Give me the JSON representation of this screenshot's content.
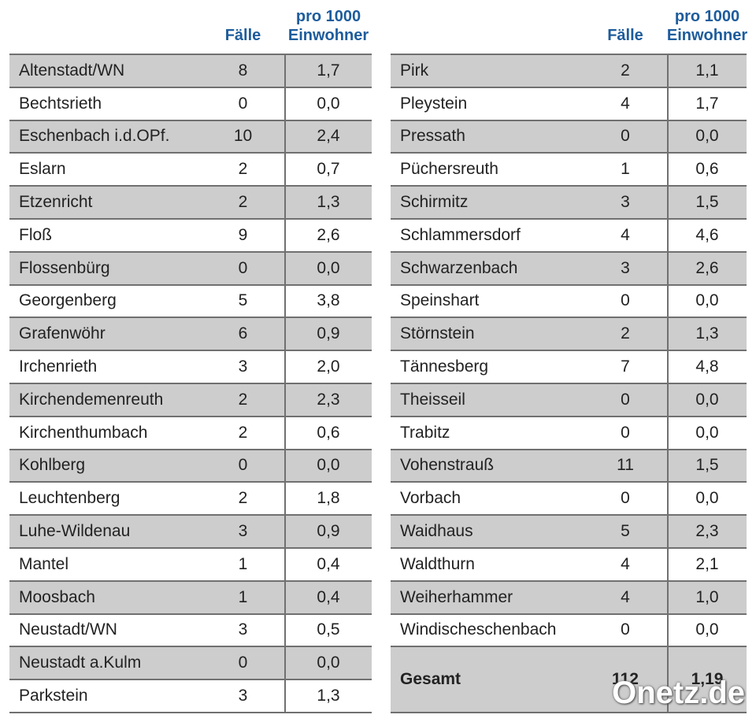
{
  "left": {
    "header": {
      "cases": "Fälle",
      "rate": [
        "pro 1000",
        "Einwohner"
      ]
    },
    "rows": [
      [
        "Altenstadt/WN",
        "8",
        "1,7"
      ],
      [
        "Bechtsrieth",
        "0",
        "0,0"
      ],
      [
        "Eschenbach i.d.OPf.",
        "10",
        "2,4"
      ],
      [
        "Eslarn",
        "2",
        "0,7"
      ],
      [
        "Etzenricht",
        "2",
        "1,3"
      ],
      [
        "Floß",
        "9",
        "2,6"
      ],
      [
        "Flossenbürg",
        "0",
        "0,0"
      ],
      [
        "Georgenberg",
        "5",
        "3,8"
      ],
      [
        "Grafenwöhr",
        "6",
        "0,9"
      ],
      [
        "Irchenrieth",
        "3",
        "2,0"
      ],
      [
        "Kirchendemenreuth",
        "2",
        "2,3"
      ],
      [
        "Kirchenthumbach",
        "2",
        "0,6"
      ],
      [
        "Kohlberg",
        "0",
        "0,0"
      ],
      [
        "Leuchtenberg",
        "2",
        "1,8"
      ],
      [
        "Luhe-Wildenau",
        "3",
        "0,9"
      ],
      [
        "Mantel",
        "1",
        "0,4"
      ],
      [
        "Moosbach",
        "1",
        "0,4"
      ],
      [
        "Neustadt/WN",
        "3",
        "0,5"
      ],
      [
        "Neustadt a.Kulm",
        "0",
        "0,0"
      ],
      [
        "Parkstein",
        "3",
        "1,3"
      ]
    ]
  },
  "right": {
    "header": {
      "cases": "Fälle",
      "rate": [
        "pro 1000",
        "Einwohner"
      ]
    },
    "rows": [
      [
        "Pirk",
        "2",
        "1,1"
      ],
      [
        "Pleystein",
        "4",
        "1,7"
      ],
      [
        "Pressath",
        "0",
        "0,0"
      ],
      [
        "Püchersreuth",
        "1",
        "0,6"
      ],
      [
        "Schirmitz",
        "3",
        "1,5"
      ],
      [
        "Schlammersdorf",
        "4",
        "4,6"
      ],
      [
        "Schwarzenbach",
        "3",
        "2,6"
      ],
      [
        "Speinshart",
        "0",
        "0,0"
      ],
      [
        "Störnstein",
        "2",
        "1,3"
      ],
      [
        "Tännesberg",
        "7",
        "4,8"
      ],
      [
        "Theisseil",
        "0",
        "0,0"
      ],
      [
        "Trabitz",
        "0",
        "0,0"
      ],
      [
        "Vohenstrauß",
        "11",
        "1,5"
      ],
      [
        "Vorbach",
        "0",
        "0,0"
      ],
      [
        "Waidhaus",
        "5",
        "2,3"
      ],
      [
        "Waldthurn",
        "4",
        "2,1"
      ],
      [
        "Weiherhammer",
        "4",
        "1,0"
      ],
      [
        "Windischeschenbach",
        "0",
        "0,0"
      ]
    ],
    "total": [
      "Gesamt",
      "112",
      "1,19"
    ]
  },
  "watermark": "Onetz.de"
}
